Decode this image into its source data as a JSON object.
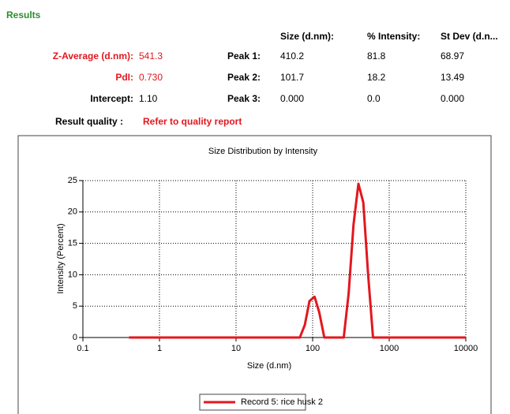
{
  "results": {
    "title": "Results",
    "columns": [
      "Size (d.nm):",
      "% Intensity:",
      "St Dev (d.n..."
    ],
    "summary": [
      {
        "label": "Z-Average (d.nm):",
        "value": "541.3"
      },
      {
        "label": "PdI:",
        "value": "0.730"
      },
      {
        "label": "Intercept:",
        "value": "1.10"
      }
    ],
    "peaks": [
      {
        "label": "Peak 1:",
        "values": [
          "410.2",
          "81.8",
          "68.97"
        ]
      },
      {
        "label": "Peak 2:",
        "values": [
          "101.7",
          "18.2",
          "13.49"
        ]
      },
      {
        "label": "Peak 3:",
        "values": [
          "0.000",
          "0.0",
          "0.000"
        ]
      }
    ],
    "quality_label": "Result quality :",
    "quality_value": "Refer to quality report"
  },
  "chart_data": {
    "type": "line",
    "title": "Size Distribution by Intensity",
    "x_label": "Size (d.nm)",
    "y_label": "Intensity (Percent)",
    "xlim": [
      0.1,
      10000
    ],
    "xlog": true,
    "xticks": [
      0.1,
      1,
      10,
      100,
      1000,
      10000
    ],
    "ylim": [
      0,
      25
    ],
    "yticks": [
      0,
      5,
      10,
      15,
      20,
      25
    ],
    "grid": true,
    "legend": "bottom",
    "series": [
      {
        "name": "Record 5: rice husk 2",
        "color": "#e3171e",
        "x": [
          0.4,
          60,
          68,
          79,
          91,
          106,
          122,
          142,
          255,
          295,
          342,
          396,
          459,
          531,
          615,
          712,
          10000
        ],
        "values": [
          0,
          0,
          0,
          2,
          5.8,
          6.5,
          4,
          0,
          0,
          7,
          18,
          24.5,
          21.5,
          10,
          0,
          0,
          0
        ]
      }
    ]
  }
}
